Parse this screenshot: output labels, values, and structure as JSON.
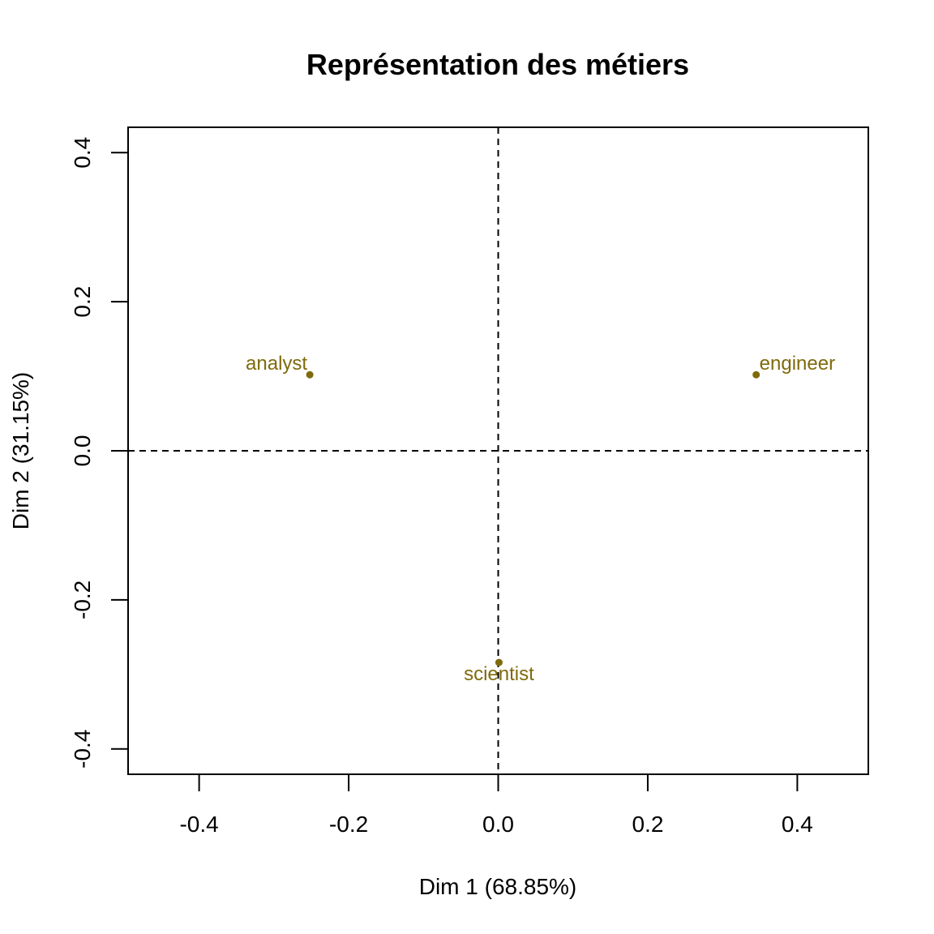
{
  "chart_data": {
    "type": "scatter",
    "title": "Représentation des métiers",
    "xlabel": "Dim 1 (68.85%)",
    "ylabel": "Dim 2 (31.15%)",
    "xlim": [
      -0.495,
      0.495
    ],
    "ylim": [
      -0.434,
      0.434
    ],
    "x_ticks": [
      -0.4,
      -0.2,
      0.0,
      0.2,
      0.4
    ],
    "x_tick_labels": [
      "-0.4",
      "-0.2",
      "0.0",
      "0.2",
      "0.4"
    ],
    "y_ticks": [
      -0.4,
      -0.2,
      0.0,
      0.2,
      0.4
    ],
    "y_tick_labels": [
      "-0.4",
      "-0.2",
      "0.0",
      "0.2",
      "0.4"
    ],
    "reference_lines": {
      "x": 0,
      "y": 0,
      "style": "dashed"
    },
    "point_color": "#7F6A0C",
    "points": [
      {
        "label": "analyst",
        "x": -0.252,
        "y": 0.102,
        "label_position": "top-left"
      },
      {
        "label": "engineer",
        "x": 0.345,
        "y": 0.102,
        "label_position": "top-right"
      },
      {
        "label": "scientist",
        "x": 0.001,
        "y": -0.284,
        "label_position": "bottom"
      }
    ]
  }
}
